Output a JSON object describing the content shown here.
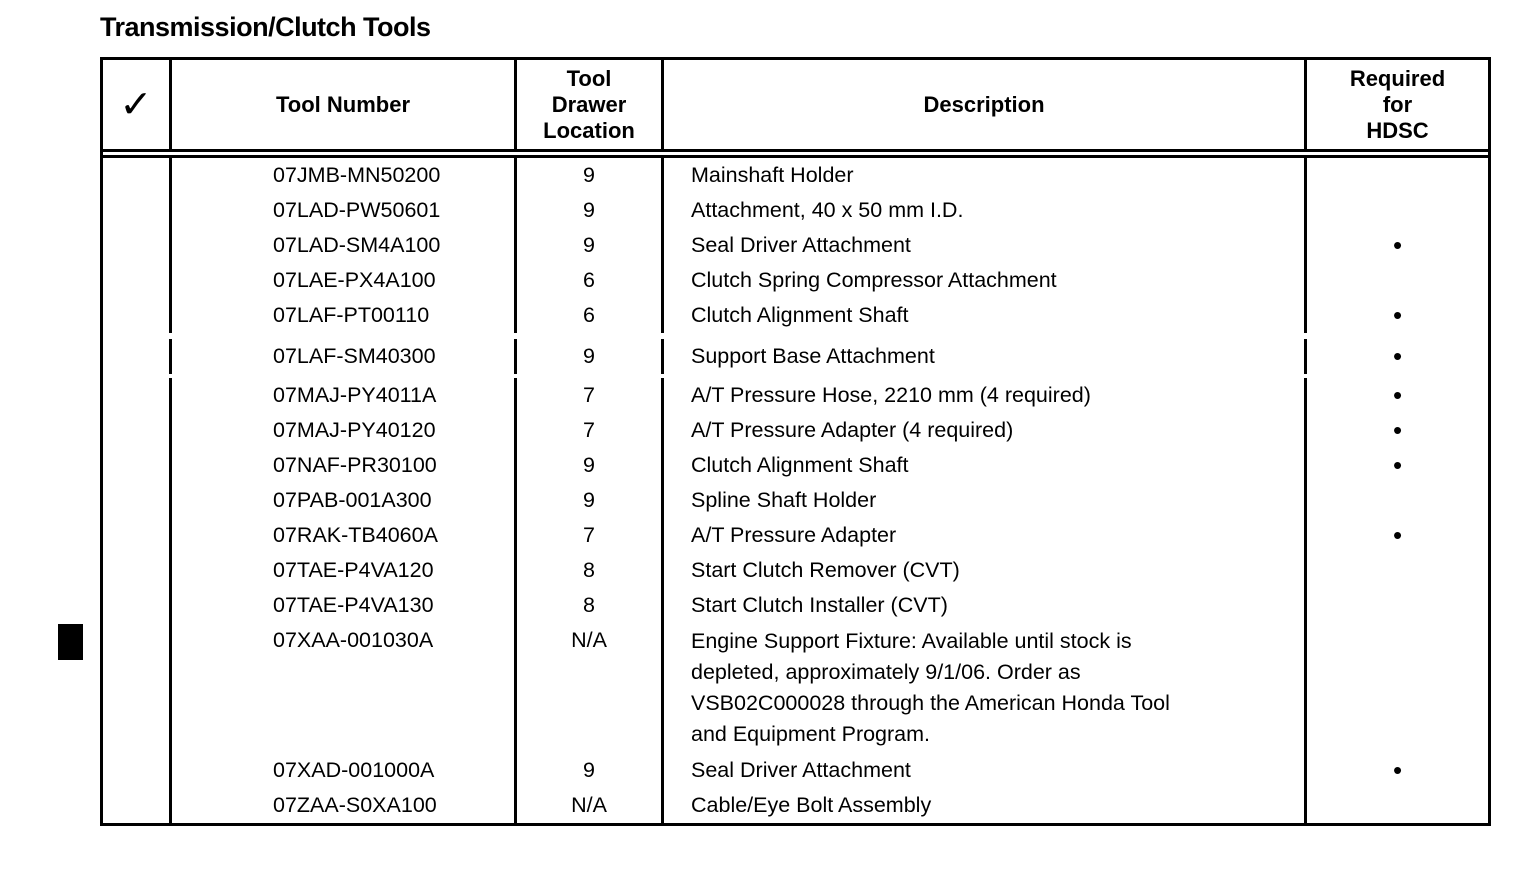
{
  "title": "Transmission/Clutch Tools",
  "table": {
    "header": {
      "check_symbol": "✓",
      "tool_number": "Tool Number",
      "drawer_location": "Tool\nDrawer\nLocation",
      "description": "Description",
      "required_hdsc": "Required\nfor\nHDSC"
    },
    "bullet_symbol": "•",
    "rows": [
      {
        "tool_number": "07JMB-MN50200",
        "drawer": "9",
        "description": "Mainshaft Holder",
        "hdsc": ""
      },
      {
        "tool_number": "07LAD-PW50601",
        "drawer": "9",
        "description": "Attachment, 40 x 50 mm I.D.",
        "hdsc": ""
      },
      {
        "tool_number": "07LAD-SM4A100",
        "drawer": "9",
        "description": "Seal Driver Attachment",
        "hdsc": "•"
      },
      {
        "tool_number": "07LAE-PX4A100",
        "drawer": "6",
        "description": "Clutch Spring Compressor Attachment",
        "hdsc": ""
      },
      {
        "tool_number": "07LAF-PT00110",
        "drawer": "6",
        "description": "Clutch Alignment Shaft",
        "hdsc": "•"
      },
      {
        "tool_number": "07LAF-SM40300",
        "drawer": "9",
        "description": "Support Base Attachment",
        "hdsc": "•"
      },
      {
        "tool_number": "07MAJ-PY4011A",
        "drawer": "7",
        "description": "A/T Pressure Hose, 2210 mm (4 required)",
        "hdsc": "•"
      },
      {
        "tool_number": "07MAJ-PY40120",
        "drawer": "7",
        "description": "A/T Pressure Adapter (4 required)",
        "hdsc": "•"
      },
      {
        "tool_number": "07NAF-PR30100",
        "drawer": "9",
        "description": "Clutch Alignment Shaft",
        "hdsc": "•"
      },
      {
        "tool_number": "07PAB-001A300",
        "drawer": "9",
        "description": "Spline Shaft Holder",
        "hdsc": ""
      },
      {
        "tool_number": "07RAK-TB4060A",
        "drawer": "7",
        "description": "A/T Pressure Adapter",
        "hdsc": "•"
      },
      {
        "tool_number": "07TAE-P4VA120",
        "drawer": "8",
        "description": "Start Clutch Remover (CVT)",
        "hdsc": ""
      },
      {
        "tool_number": "07TAE-P4VA130",
        "drawer": "8",
        "description": "Start Clutch Installer (CVT)",
        "hdsc": ""
      },
      {
        "tool_number": "07XAA-001030A",
        "drawer": "N/A",
        "description": "Engine Support Fixture: Available until stock is\ndepleted, approximately 9/1/06. Order as\nVSB02C000028 through the American Honda Tool\nand Equipment Program.",
        "hdsc": ""
      },
      {
        "tool_number": "07XAD-001000A",
        "drawer": "9",
        "description": "Seal Driver Attachment",
        "hdsc": "•"
      },
      {
        "tool_number": "07ZAA-S0XA100",
        "drawer": "N/A",
        "description": "Cable/Eye Bolt Assembly",
        "hdsc": ""
      }
    ]
  }
}
